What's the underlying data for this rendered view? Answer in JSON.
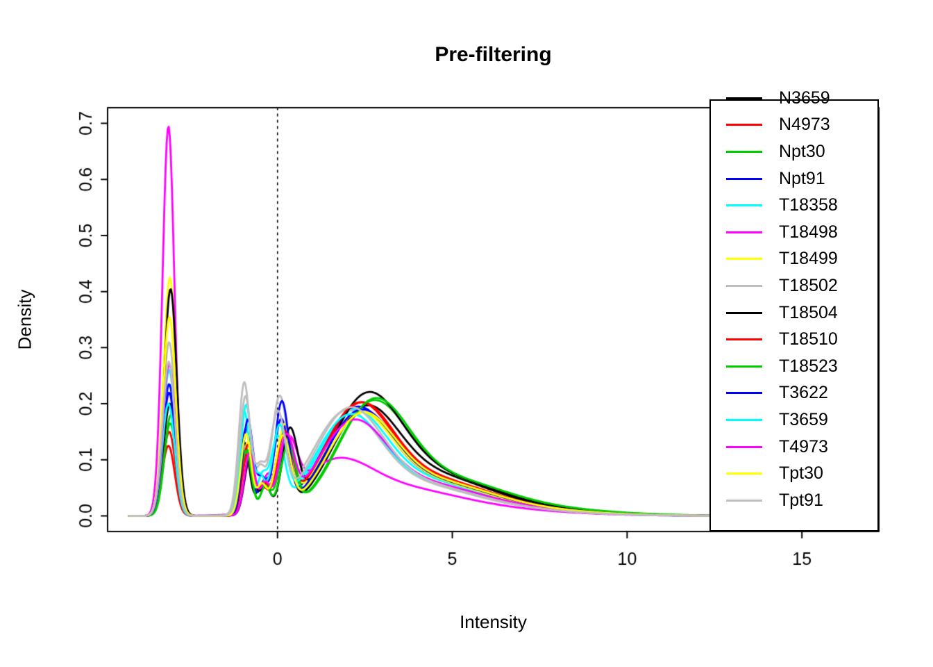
{
  "title": "Pre-filtering",
  "chart_data": {
    "type": "line",
    "title": "Pre-filtering",
    "xlabel": "Intensity",
    "ylabel": "Density",
    "xlim": [
      -4.86,
      17.2
    ],
    "ylim": [
      -0.028,
      0.728
    ],
    "xticks": [
      "0",
      "5",
      "10",
      "15"
    ],
    "xtick_values": [
      0,
      5,
      10,
      15
    ],
    "yticks": [
      "0.0",
      "0.1",
      "0.2",
      "0.3",
      "0.4",
      "0.5",
      "0.6",
      "0.7"
    ],
    "ytick_values": [
      0.0,
      0.1,
      0.2,
      0.3,
      0.4,
      0.5,
      0.6,
      0.7
    ],
    "grid": false,
    "background": "#ffffff",
    "axis_color": "#000000",
    "reference_line": {
      "x": 0,
      "style": "dotted",
      "color": "#000000"
    },
    "legend": {
      "position": "topright",
      "first_entry_clipped": true
    },
    "curve_model": "gaussian_mixture: density(x) = sum of height*exp(-0.5*((x-center)/sigma)^2) per [center, height, sigma]",
    "series": [
      {
        "name": "N3659",
        "color": "#000000",
        "components": [
          [
            -3.08,
            0.2,
            0.18
          ],
          [
            -0.95,
            0.13,
            0.15
          ],
          [
            -0.45,
            0.05,
            0.15
          ],
          [
            0.15,
            0.13,
            0.22
          ],
          [
            2.45,
            0.155,
            0.95
          ],
          [
            4.2,
            0.065,
            1.7
          ],
          [
            6.5,
            0.012,
            2.2
          ]
        ]
      },
      {
        "name": "N4973",
        "color": "#FF0000",
        "components": [
          [
            -3.12,
            0.125,
            0.18
          ],
          [
            -0.85,
            0.11,
            0.16
          ],
          [
            -0.4,
            0.04,
            0.14
          ],
          [
            0.2,
            0.14,
            0.22
          ],
          [
            2.3,
            0.165,
            0.95
          ],
          [
            4.1,
            0.06,
            1.7
          ],
          [
            6.5,
            0.012,
            2.2
          ]
        ]
      },
      {
        "name": "Npt30",
        "color": "#00CD00",
        "components": [
          [
            -3.05,
            0.18,
            0.18
          ],
          [
            -0.9,
            0.12,
            0.16
          ],
          [
            -0.35,
            0.05,
            0.14
          ],
          [
            0.25,
            0.12,
            0.22
          ],
          [
            2.65,
            0.17,
            1.0
          ],
          [
            4.5,
            0.06,
            1.7
          ],
          [
            7.0,
            0.012,
            2.2
          ]
        ]
      },
      {
        "name": "Npt91",
        "color": "#0000FF",
        "components": [
          [
            -3.1,
            0.235,
            0.18
          ],
          [
            -0.9,
            0.155,
            0.15
          ],
          [
            -0.4,
            0.05,
            0.14
          ],
          [
            0.1,
            0.155,
            0.2
          ],
          [
            2.2,
            0.16,
            0.95
          ],
          [
            4.0,
            0.055,
            1.7
          ],
          [
            6.2,
            0.012,
            2.2
          ]
        ]
      },
      {
        "name": "T18358",
        "color": "#00FFFF",
        "components": [
          [
            -3.1,
            0.26,
            0.18
          ],
          [
            -0.95,
            0.185,
            0.15
          ],
          [
            -0.45,
            0.06,
            0.14
          ],
          [
            0.0,
            0.125,
            0.2
          ],
          [
            2.1,
            0.155,
            0.95
          ],
          [
            3.9,
            0.055,
            1.7
          ],
          [
            6.2,
            0.012,
            2.2
          ]
        ]
      },
      {
        "name": "T18498",
        "color": "#FF00FF",
        "components": [
          [
            -3.12,
            0.695,
            0.17
          ],
          [
            -0.8,
            0.09,
            0.15
          ],
          [
            -0.3,
            0.05,
            0.15
          ],
          [
            0.3,
            0.1,
            0.25
          ],
          [
            1.6,
            0.07,
            1.0
          ],
          [
            3.2,
            0.045,
            1.8
          ],
          [
            6.0,
            0.01,
            2.2
          ]
        ]
      },
      {
        "name": "T18499",
        "color": "#FFFF00",
        "components": [
          [
            -3.08,
            0.425,
            0.18
          ],
          [
            -0.85,
            0.13,
            0.15
          ],
          [
            -0.4,
            0.05,
            0.14
          ],
          [
            0.2,
            0.145,
            0.22
          ],
          [
            2.25,
            0.15,
            0.95
          ],
          [
            4.0,
            0.055,
            1.7
          ],
          [
            6.3,
            0.012,
            2.2
          ]
        ]
      },
      {
        "name": "T18502",
        "color": "#BEBEBE",
        "components": [
          [
            -3.1,
            0.31,
            0.18
          ],
          [
            -0.95,
            0.235,
            0.16
          ],
          [
            -0.5,
            0.07,
            0.14
          ],
          [
            0.05,
            0.185,
            0.22
          ],
          [
            1.9,
            0.155,
            0.95
          ],
          [
            3.6,
            0.05,
            1.7
          ],
          [
            6.0,
            0.012,
            2.2
          ]
        ]
      },
      {
        "name": "T18504",
        "color": "#000000",
        "components": [
          [
            -3.06,
            0.405,
            0.18
          ],
          [
            -0.8,
            0.1,
            0.15
          ],
          [
            -0.35,
            0.05,
            0.14
          ],
          [
            0.35,
            0.135,
            0.22
          ],
          [
            2.5,
            0.18,
            1.0
          ],
          [
            4.3,
            0.065,
            1.7
          ],
          [
            6.6,
            0.012,
            2.2
          ]
        ]
      },
      {
        "name": "T18510",
        "color": "#FF0000",
        "components": [
          [
            -3.1,
            0.15,
            0.18
          ],
          [
            -0.85,
            0.125,
            0.15
          ],
          [
            -0.4,
            0.05,
            0.14
          ],
          [
            0.2,
            0.13,
            0.22
          ],
          [
            2.25,
            0.165,
            0.95
          ],
          [
            4.05,
            0.06,
            1.7
          ],
          [
            6.4,
            0.012,
            2.2
          ]
        ]
      },
      {
        "name": "T18523",
        "color": "#00CD00",
        "components": [
          [
            -3.07,
            0.165,
            0.18
          ],
          [
            -0.9,
            0.115,
            0.16
          ],
          [
            -0.35,
            0.05,
            0.14
          ],
          [
            0.3,
            0.115,
            0.22
          ],
          [
            2.7,
            0.175,
            1.0
          ],
          [
            4.6,
            0.06,
            1.7
          ],
          [
            7.2,
            0.012,
            2.2
          ]
        ]
      },
      {
        "name": "T3622",
        "color": "#0000FF",
        "components": [
          [
            -3.1,
            0.22,
            0.18
          ],
          [
            -0.85,
            0.17,
            0.15
          ],
          [
            -0.45,
            0.06,
            0.14
          ],
          [
            0.12,
            0.19,
            0.2
          ],
          [
            2.3,
            0.155,
            0.95
          ],
          [
            4.1,
            0.055,
            1.7
          ],
          [
            6.4,
            0.012,
            2.2
          ]
        ]
      },
      {
        "name": "T3659",
        "color": "#00FFFF",
        "components": [
          [
            -3.12,
            0.2,
            0.18
          ],
          [
            -0.9,
            0.195,
            0.15
          ],
          [
            -0.5,
            0.06,
            0.14
          ],
          [
            0.05,
            0.14,
            0.2
          ],
          [
            2.0,
            0.15,
            0.95
          ],
          [
            3.8,
            0.05,
            1.7
          ],
          [
            6.1,
            0.012,
            2.2
          ]
        ]
      },
      {
        "name": "T4973",
        "color": "#FF00FF",
        "components": [
          [
            -3.1,
            0.27,
            0.18
          ],
          [
            -0.8,
            0.11,
            0.15
          ],
          [
            -0.35,
            0.05,
            0.14
          ],
          [
            0.25,
            0.12,
            0.22
          ],
          [
            2.1,
            0.14,
            0.95
          ],
          [
            3.9,
            0.05,
            1.7
          ],
          [
            6.2,
            0.012,
            2.2
          ]
        ]
      },
      {
        "name": "Tpt30",
        "color": "#FFFF00",
        "components": [
          [
            -3.09,
            0.355,
            0.18
          ],
          [
            -0.9,
            0.145,
            0.15
          ],
          [
            -0.45,
            0.05,
            0.14
          ],
          [
            0.15,
            0.13,
            0.22
          ],
          [
            2.35,
            0.15,
            0.95
          ],
          [
            4.15,
            0.055,
            1.7
          ],
          [
            6.4,
            0.012,
            2.2
          ]
        ]
      },
      {
        "name": "Tpt91",
        "color": "#BEBEBE",
        "components": [
          [
            -3.11,
            0.275,
            0.18
          ],
          [
            -0.92,
            0.21,
            0.16
          ],
          [
            -0.5,
            0.07,
            0.14
          ],
          [
            0.0,
            0.165,
            0.22
          ],
          [
            2.0,
            0.16,
            0.95
          ],
          [
            3.7,
            0.05,
            1.7
          ],
          [
            6.0,
            0.012,
            2.2
          ]
        ]
      }
    ]
  }
}
